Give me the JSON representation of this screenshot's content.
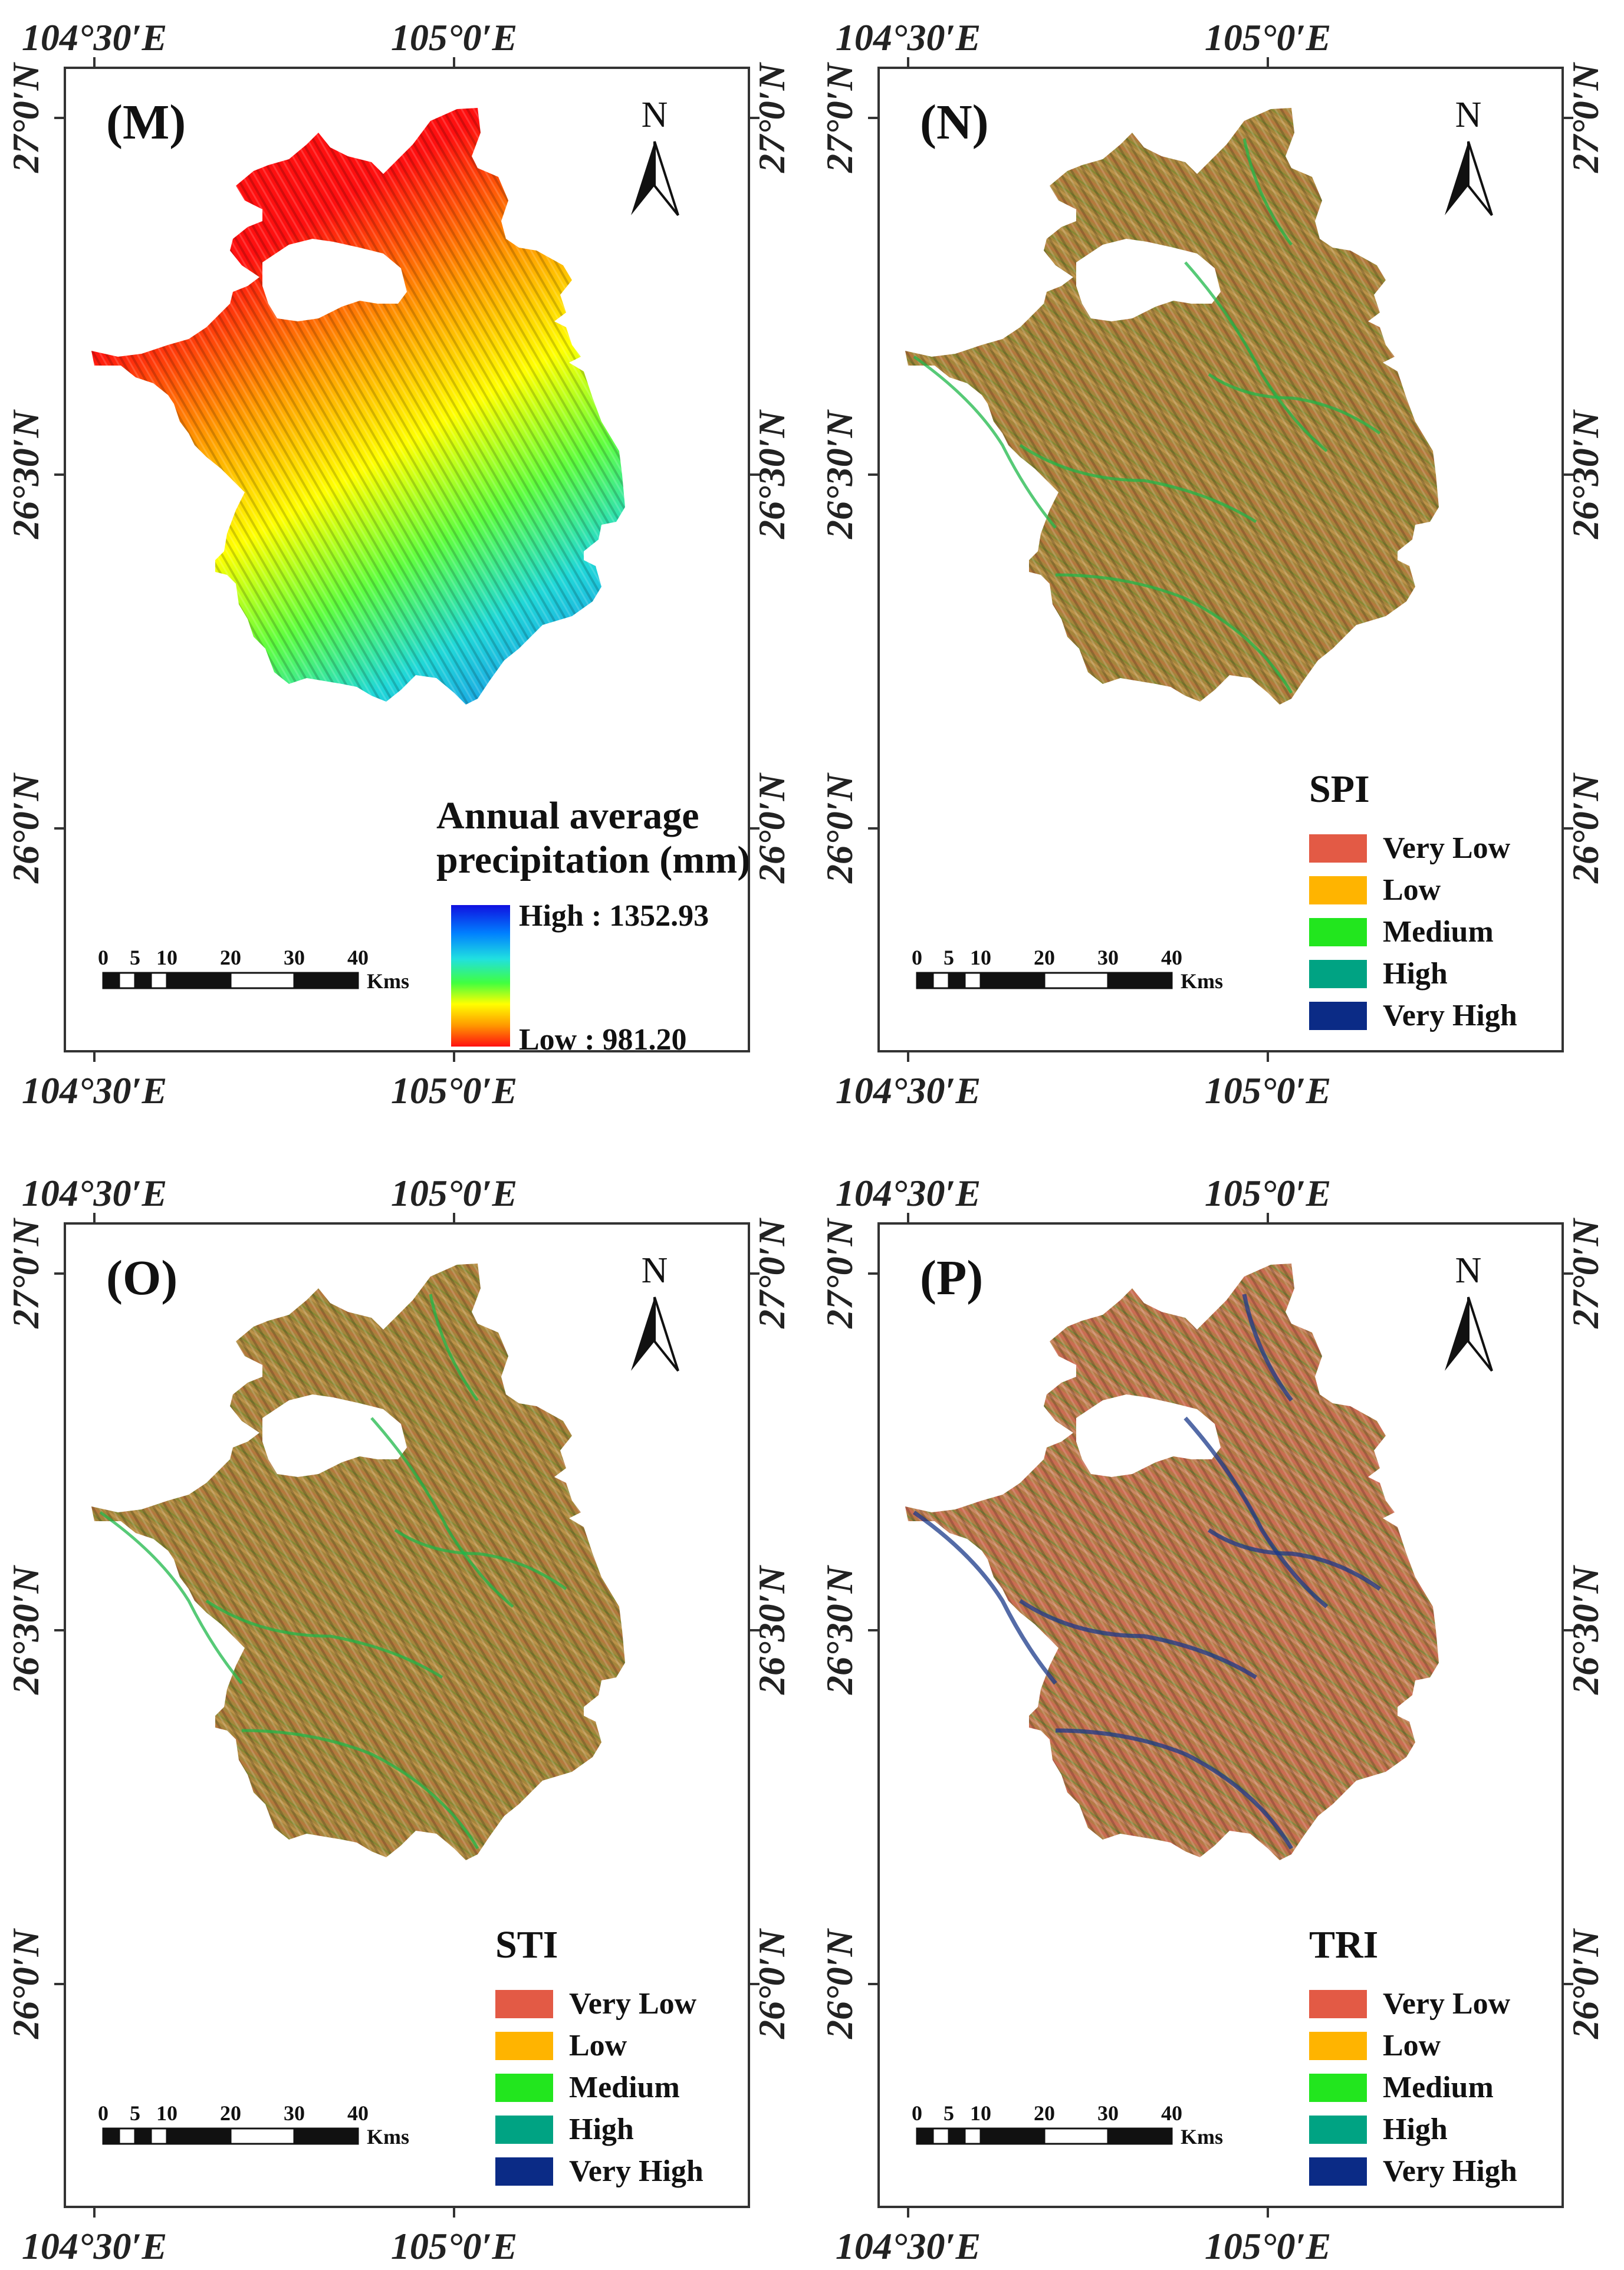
{
  "map_panels": [
    {
      "id": "M",
      "label": "(M)",
      "fill": "precip",
      "legend_type": "gradient",
      "legend_title_line1": "Annual average",
      "legend_title_line2": "precipitation (mm)",
      "high_label": "High : 1352.93",
      "low_label": "Low : 981.20",
      "gradient_colors": [
        "#1010e0",
        "#0080ff",
        "#20e0e0",
        "#40ff40",
        "#ffff00",
        "#ff9900",
        "#ff1010"
      ]
    },
    {
      "id": "N",
      "label": "(N)",
      "fill": "terrain",
      "legend_type": "classes",
      "legend_title": "SPI",
      "classes": [
        {
          "name": "Very Low",
          "color": "#e35a45"
        },
        {
          "name": "Low",
          "color": "#ffb400"
        },
        {
          "name": "Medium",
          "color": "#22e61e"
        },
        {
          "name": "High",
          "color": "#00a383"
        },
        {
          "name": "Very High",
          "color": "#0b2b86"
        }
      ]
    },
    {
      "id": "O",
      "label": "(O)",
      "fill": "terrain",
      "legend_type": "classes",
      "legend_title": "STI",
      "classes": [
        {
          "name": "Very Low",
          "color": "#e35a45"
        },
        {
          "name": "Low",
          "color": "#ffb400"
        },
        {
          "name": "Medium",
          "color": "#22e61e"
        },
        {
          "name": "High",
          "color": "#00a383"
        },
        {
          "name": "Very High",
          "color": "#0b2b86"
        }
      ]
    },
    {
      "id": "P",
      "label": "(P)",
      "fill": "terrain-red",
      "legend_type": "classes",
      "legend_title": "TRI",
      "classes": [
        {
          "name": "Very Low",
          "color": "#e35a45"
        },
        {
          "name": "Low",
          "color": "#ffb400"
        },
        {
          "name": "Medium",
          "color": "#22e61e"
        },
        {
          "name": "High",
          "color": "#00a383"
        },
        {
          "name": "Very High",
          "color": "#0b2b86"
        }
      ]
    }
  ],
  "graticule": {
    "lon_left": "104°30′E",
    "lon_right": "105°0′E",
    "lat_top": "27°0′N",
    "lat_mid": "26°30′N",
    "lat_bottom": "26°0′N"
  },
  "scale_bar": {
    "ticks": [
      "0",
      "5",
      "10",
      "20",
      "30",
      "40"
    ],
    "unit": "Kms"
  },
  "north_arrow": {
    "letter": "N",
    "icon": "north-arrow-icon"
  }
}
